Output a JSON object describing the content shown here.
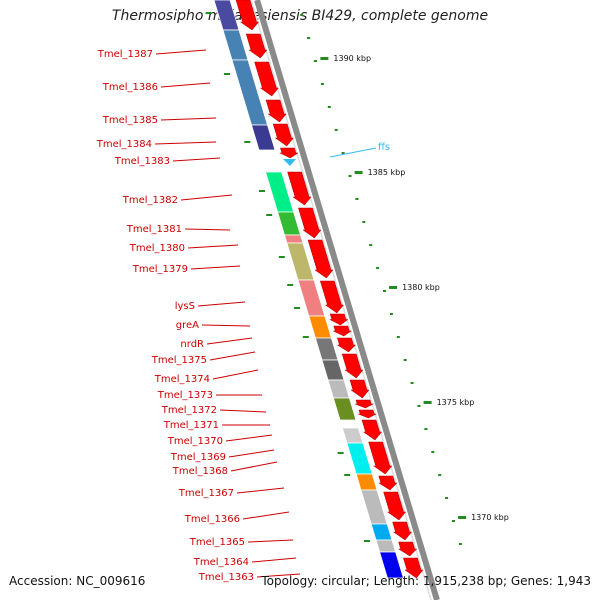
{
  "title": "Thermosipho melanesiensis BI429, complete genome",
  "accession": "Accession: NC_009616",
  "summary": "Topology: circular; Length: 1,915,238 bp; Genes: 1,943",
  "colors": {
    "cds_arrow": "#ff0000",
    "label_text": "#cc0000",
    "tick": "#228b22",
    "backbone": "#8a8a8a",
    "rna": "#33bbee"
  },
  "scale_labels": [
    "1390 kbp",
    "1385 kbp",
    "1380 kbp",
    "1375 kbp",
    "1370 kbp"
  ],
  "rna_label": "ffs",
  "gene_labels": [
    "Tmel_1387",
    "Tmel_1386",
    "Tmel_1385",
    "Tmel_1384",
    "Tmel_1383",
    "Tmel_1382",
    "Tmel_1381",
    "Tmel_1380",
    "Tmel_1379",
    "lysS",
    "greA",
    "nrdR",
    "Tmel_1375",
    "Tmel_1374",
    "Tmel_1373",
    "Tmel_1372",
    "Tmel_1371",
    "Tmel_1370",
    "Tmel_1369",
    "Tmel_1368",
    "Tmel_1367",
    "Tmel_1366",
    "Tmel_1365",
    "Tmel_1364",
    "Tmel_1363"
  ],
  "cog_block_colors": [
    "#4a4aa0",
    "#4682b4",
    "#4682b4",
    "#3a3a90",
    "#00ee88",
    "#33bb33",
    "#f08080",
    "#bdb76b",
    "#f08080",
    "#ff8c00",
    "#777777",
    "#666666",
    "#bbbbbb",
    "#6b8e23",
    "#cccccc",
    "#00eeee",
    "#ff8c00",
    "#bbbbbb",
    "#00aaee",
    "#bbbbbb",
    "#0000ee"
  ]
}
